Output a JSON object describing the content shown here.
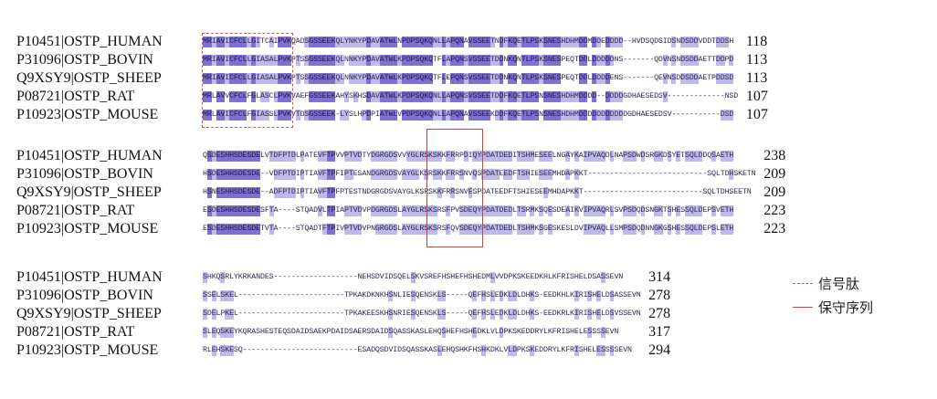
{
  "alignment": {
    "blocks": [
      {
        "rows": [
          {
            "label": "P10451|OSTP_HUMAN",
            "seq": "MRIAVICFCLLGITCAIPVKQADSGSSEEKQLYNKYPDAVATWLNPDPSQKQNLLAPQNAVSSEETNDFKQETLPSKSNESHDHMDDMDDEDDDD--HVDSQDSIDSNDSDDVDDTDDSH",
            "end": "118"
          },
          {
            "label": "P31096|OSTP_BOVIN",
            "seq": "MRIAVICFCLLGIASALPVKPTSSGSSEEKQLNNKYPDAVATWLKPDPSQKQTFLAPQNSVSSEETDDNKQNTLPSKSNESPEQTDDLDDDDDNS-------QDVNSNDSDDAETTDDPD",
            "end": "113"
          },
          {
            "label": "Q9XSY9|OSTP_SHEEP",
            "seq": "MRIAVICFCLLGIASALPVKPTSSGSSEEKQLNNKYPDAVATWLKPDPSQKQTFLEPQNSVSSEETDDNKQNTLPSKSNESPEQTDDLDDDDENS-------QEVNSDDSDDAETPDDSD",
            "end": "113"
          },
          {
            "label": "P08721|OSTP_RAT",
            "seq": "MRLAVVCFCLFGLASCLPVKVAEFGSSEEKAHYSKHSDAVATWLKPDPSQKQNLLAPQNSVSSEETDDFKQETLPSNSNESHDHMDDDD--DDDDGDHAESEDSV-------------NSD",
            "end": "107"
          },
          {
            "label": "P10923|OSTP_MOUSE",
            "seq": "MRLAVICFCLFGIASSLPVKVTDSGSSEEK-LYSLHPDPIATWLVPDPSQKQNLLAPQNAVSSEEKDDFKQETLPSNSNESHDHMDDDDDDDDDDDGDHAESEDSV-----------DSD",
            "end": "107"
          }
        ]
      },
      {
        "rows": [
          {
            "label": "P10451|OSTP_HUMAN",
            "seq": "QSDESHHSDESDELVTDFPTDLPATEVFTPVVPTVDTYDGRGDSVVYGLRSKSKKFRRPDIQYPDATDEDITSHMESEELNGAYKAIPVAQDLNAPSDWDSRGKDSYETSQLDDQSAETH",
            "end": "238"
          },
          {
            "label": "P31096|OSTP_BOVIN",
            "seq": "HSDESHHSDESDE--VDFPTDIPTIAVFTPFIPTESANDGRGDSVAYGLKSRSKKFRRSNVQSPDATEEDFTSHIESEEMHDAPKKT---------------------------SQLTDHSKETN",
            "end": "209"
          },
          {
            "label": "Q9XSY9|OSTP_SHEEP",
            "seq": "HSNESHHSDESDE--ADFPTDIPTIAVFTPFPTESTNDGRGDSVAYGLKSRSKKFRRSNVESPDATEEDFTSHIESEEMHDAPKKT---------------------------SQLTDHSEETN",
            "end": "209"
          },
          {
            "label": "P08721|OSTP_RAT",
            "seq": "ESDESHHSDESDESFTA----STQADVLTPIAPTVDVPDGRGDSLAYGLRSKSRSFPVSDEQYPDATDEDLTSRMKSQESDEAIKVIPVAQRLSVPSDQDSNGKTSHESSQLDEPSVETH",
            "end": "223"
          },
          {
            "label": "P10923|OSTP_MOUSE",
            "seq": "ESDESHHSDESDETVTA----STQADTFTPIVPTVDVPNGRGDSLAYGLRSKSRSFQVSDEQYPDATDEDLTSHMKSGESKESLDVIPVAQLLSMPSDQDNNGKGSHESSQLDEPSLETH",
            "end": "223"
          }
        ]
      },
      {
        "rows": [
          {
            "label": "P10451|OSTP_HUMAN",
            "seq": "SHKQSRLYKRKANDES-------------------NEHSDVIDSQELSKVSREFHSHEFHSHEDMLVVDPKSKEEDKHLKFRISHELDSASSEVN",
            "end": "314"
          },
          {
            "label": "P31096|OSTP_BOVIN",
            "seq": "SSELSKEL------------------------TPKAKDKNKHSNLIESQENSKLS-----QEFHSLEDKLDLDHKS-EEDKHLKIRISHELDSASSEVN",
            "end": "278"
          },
          {
            "label": "Q9XSY9|OSTP_SHEEP",
            "seq": "SDELPKEL------------------------TPKAKEESKHSNRIESQENSKLS-----QEFHSLEDKLDLDHKS-EEDKRLKIRISHELDSVSSEVN",
            "end": "278"
          },
          {
            "label": "P08721|OSTP_RAT",
            "seq": "SLEQSKEYKQRASHESTEQSDAIDSAEKPDAIDSAERSDAIDSQASSKASLEHQSHEFHSHEDKLVLDPKSKEDDRYLKFRISHELESSSSEVN",
            "end": "317"
          },
          {
            "label": "P10923|OSTP_MOUSE",
            "seq": "RLEHSKESQ--------------------------ESADQSDVIDSQASSKASLEHQSHKFHSHKDKLVLDPKSKEDDRYLKFRISHELESSSSEVN",
            "end": "294"
          }
        ]
      }
    ]
  },
  "legend": {
    "items": [
      {
        "label": "信号肽",
        "style": "dashed",
        "color": "#d9534f"
      },
      {
        "label": "保守序列",
        "style": "solid",
        "color": "#d63a3a"
      }
    ]
  },
  "colors": {
    "conserved_dark": "#7f72cf",
    "conserved_light": "#bfb8ea",
    "box": "#d63a3a"
  }
}
